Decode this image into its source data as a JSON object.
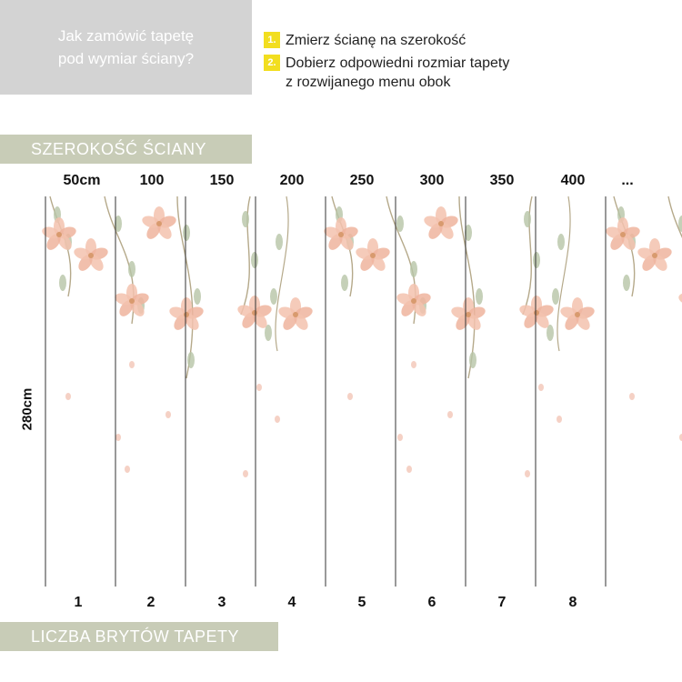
{
  "intro": {
    "line1": "Jak zamówić tapetę",
    "line2": "pod wymiar ściany?"
  },
  "steps": [
    {
      "num": "1.",
      "text": "Zmierz ścianę na szerokość"
    },
    {
      "num": "2.",
      "text_line1": "Dobierz odpowiedni rozmiar tapety",
      "text_line2": "z rozwijanego menu obok"
    }
  ],
  "banner_width": "SZEROKOŚĆ ŚCIANY",
  "banner_strips": "LICZBA BRYTÓW TAPETY",
  "width_ticks": [
    "50cm",
    "100",
    "150",
    "200",
    "250",
    "300",
    "350",
    "400",
    "..."
  ],
  "height_label": "280cm",
  "strip_numbers": [
    "1",
    "2",
    "3",
    "4",
    "5",
    "6",
    "7",
    "8"
  ],
  "colors": {
    "intro_bg": "#d3d3d3",
    "banner_bg": "#c8ccb7",
    "step_badge": "#f2de1f",
    "flower": "#f0b8a4",
    "leaf": "#a9b89a"
  }
}
